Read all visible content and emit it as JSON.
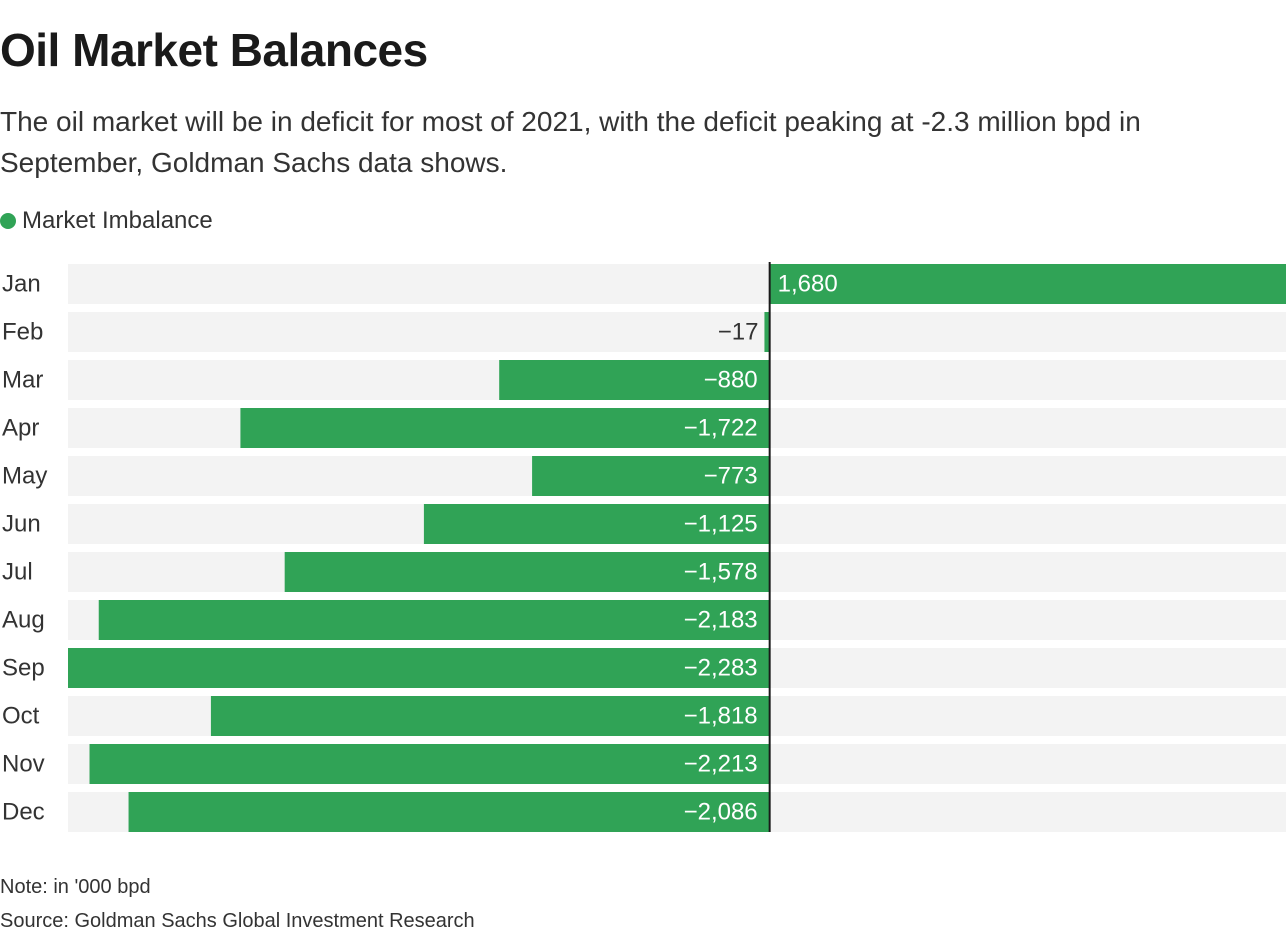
{
  "header": {
    "title": "Oil Market Balances",
    "subtitle": "The oil market will be in deficit for most of 2021, with the deficit peaking at -2.3 million bpd in September, Goldman Sachs data shows."
  },
  "legend": {
    "label": "Market Imbalance"
  },
  "colors": {
    "bar": "#30a356",
    "track": "#f3f3f3",
    "zero_line": "#1a1a1a",
    "label_inside": "#ffffff",
    "label_outside": "#333333",
    "category_label": "#333333"
  },
  "footer": {
    "note": "Note: in '000 bpd",
    "source": "Source: Goldman Sachs Global Investment Research"
  },
  "chart_data": {
    "type": "bar",
    "orientation": "horizontal",
    "categories": [
      "Jan",
      "Feb",
      "Mar",
      "Apr",
      "May",
      "Jun",
      "Jul",
      "Aug",
      "Sep",
      "Oct",
      "Nov",
      "Dec"
    ],
    "series": [
      {
        "name": "Market Imbalance",
        "values": [
          1680,
          -17,
          -880,
          -1722,
          -773,
          -1125,
          -1578,
          -2183,
          -2283,
          -1818,
          -2213,
          -2086
        ]
      }
    ],
    "value_labels": [
      "1,680",
      "−17",
      "−880",
      "−1,722",
      "−773",
      "−1,125",
      "−1,578",
      "−2,183",
      "−2,283",
      "−1,818",
      "−2,213",
      "−2,086"
    ],
    "title": "Oil Market Balances",
    "xlabel": "",
    "ylabel": "",
    "xlim": [
      -2283,
      1680
    ],
    "grid": false,
    "legend_position": "top-left"
  }
}
